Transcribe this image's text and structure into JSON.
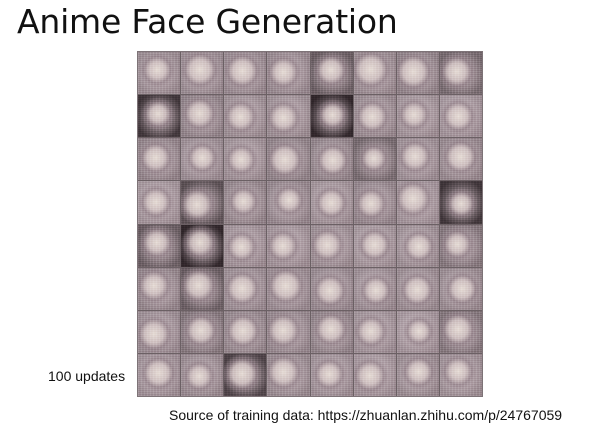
{
  "slide": {
    "title": "Anime Face Generation",
    "caption": "100 updates",
    "source": "Source of training data: https://zhuanlan.zhihu.com/p/24767059"
  },
  "image_grid": {
    "rows": 8,
    "columns": 8,
    "content": "generated anime face samples",
    "colors": {
      "tile_base": "#b3a2a8",
      "face_light": "#e6dcd6",
      "shadow_dark": "#2e2428",
      "gridline": "#6b6064"
    }
  }
}
